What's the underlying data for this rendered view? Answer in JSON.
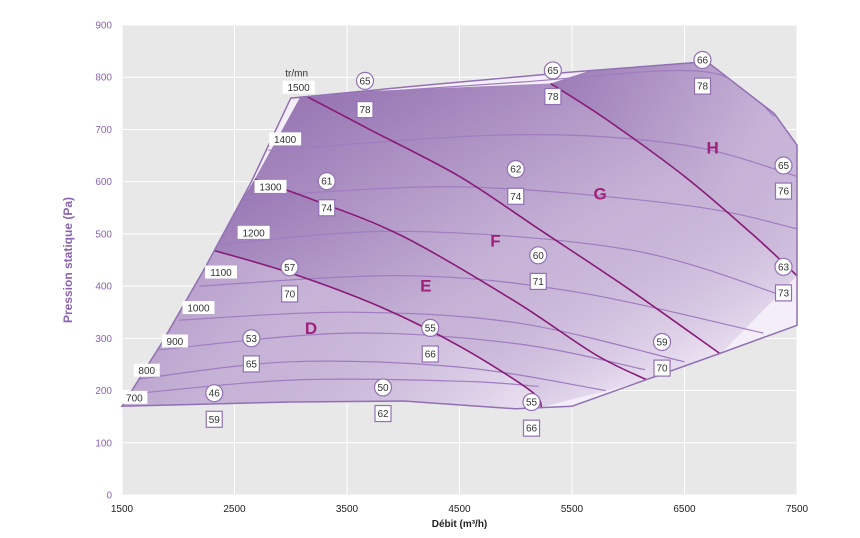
{
  "chart_data": {
    "type": "area",
    "title": "",
    "xlabel": "Débit (m³/h)",
    "ylabel": "Pression statique (Pa)",
    "xlim": [
      1500,
      7500
    ],
    "ylim": [
      0,
      900
    ],
    "x_ticks": [
      "1500",
      "2500",
      "3500",
      "4500",
      "5500",
      "6500",
      "7500"
    ],
    "y_ticks": [
      "0",
      "100",
      "200",
      "300",
      "400",
      "500",
      "600",
      "700",
      "800",
      "900"
    ],
    "speed_unit": "tr/mn",
    "outline": [
      {
        "x": 1500,
        "y": 170
      },
      {
        "x": 1850,
        "y": 290
      },
      {
        "x": 2250,
        "y": 440
      },
      {
        "x": 2650,
        "y": 600
      },
      {
        "x": 3000,
        "y": 760
      },
      {
        "x": 4200,
        "y": 785
      },
      {
        "x": 5500,
        "y": 810
      },
      {
        "x": 6700,
        "y": 830
      },
      {
        "x": 7300,
        "y": 730
      },
      {
        "x": 7500,
        "y": 670
      },
      {
        "x": 7500,
        "y": 325
      },
      {
        "x": 6800,
        "y": 270
      },
      {
        "x": 5500,
        "y": 170
      },
      {
        "x": 5000,
        "y": 165
      },
      {
        "x": 4000,
        "y": 180
      },
      {
        "x": 3000,
        "y": 178
      },
      {
        "x": 1500,
        "y": 170
      }
    ],
    "zones": [
      {
        "name": "D",
        "label_at": {
          "x": 3180,
          "y": 308
        },
        "boundary": [
          {
            "x": 2290,
            "y": 470
          },
          {
            "x": 3000,
            "y": 425
          },
          {
            "x": 3800,
            "y": 360
          },
          {
            "x": 4500,
            "y": 285
          },
          {
            "x": 5130,
            "y": 200
          },
          {
            "x": 5230,
            "y": 168
          }
        ]
      },
      {
        "name": "E",
        "label_at": {
          "x": 4200,
          "y": 390
        },
        "boundary": [
          {
            "x": 2680,
            "y": 605
          },
          {
            "x": 3200,
            "y": 565
          },
          {
            "x": 4000,
            "y": 495
          },
          {
            "x": 5000,
            "y": 370
          },
          {
            "x": 5700,
            "y": 270
          },
          {
            "x": 6170,
            "y": 220
          }
        ]
      },
      {
        "name": "F",
        "label_at": {
          "x": 4820,
          "y": 476
        },
        "boundary": [
          {
            "x": 3100,
            "y": 768
          },
          {
            "x": 3700,
            "y": 700
          },
          {
            "x": 4500,
            "y": 610
          },
          {
            "x": 5200,
            "y": 510
          },
          {
            "x": 6000,
            "y": 395
          },
          {
            "x": 6820,
            "y": 270
          }
        ]
      },
      {
        "name": "G",
        "label_at": {
          "x": 5750,
          "y": 566
        },
        "boundary": [
          {
            "x": 5310,
            "y": 788
          },
          {
            "x": 5800,
            "y": 720
          },
          {
            "x": 6500,
            "y": 610
          },
          {
            "x": 7100,
            "y": 500
          },
          {
            "x": 7500,
            "y": 420
          }
        ]
      },
      {
        "name": "H",
        "label_at": {
          "x": 6750,
          "y": 654
        },
        "boundary": []
      }
    ],
    "speed_curves": [
      {
        "rpm": "700",
        "label_at": {
          "x": 1610,
          "y": 186
        },
        "points": [
          {
            "x": 1520,
            "y": 192
          },
          {
            "x": 3000,
            "y": 220
          },
          {
            "x": 4500,
            "y": 218
          },
          {
            "x": 5200,
            "y": 208
          }
        ]
      },
      {
        "rpm": "800",
        "label_at": {
          "x": 1720,
          "y": 238
        },
        "points": [
          {
            "x": 1640,
            "y": 222
          },
          {
            "x": 3000,
            "y": 255
          },
          {
            "x": 4500,
            "y": 245
          },
          {
            "x": 5800,
            "y": 200
          }
        ]
      },
      {
        "rpm": "900",
        "label_at": {
          "x": 1970,
          "y": 294
        },
        "points": [
          {
            "x": 1830,
            "y": 278
          },
          {
            "x": 3500,
            "y": 310
          },
          {
            "x": 5000,
            "y": 290
          },
          {
            "x": 6150,
            "y": 240
          }
        ]
      },
      {
        "rpm": "1000",
        "label_at": {
          "x": 2180,
          "y": 358
        },
        "points": [
          {
            "x": 2010,
            "y": 335
          },
          {
            "x": 3500,
            "y": 350
          },
          {
            "x": 5000,
            "y": 330
          },
          {
            "x": 6500,
            "y": 255
          }
        ]
      },
      {
        "rpm": "1100",
        "label_at": {
          "x": 2380,
          "y": 426
        },
        "points": [
          {
            "x": 2190,
            "y": 400
          },
          {
            "x": 4000,
            "y": 420
          },
          {
            "x": 5500,
            "y": 390
          },
          {
            "x": 7200,
            "y": 310
          }
        ]
      },
      {
        "rpm": "1200",
        "label_at": {
          "x": 2670,
          "y": 502
        },
        "points": [
          {
            "x": 2370,
            "y": 480
          },
          {
            "x": 4000,
            "y": 505
          },
          {
            "x": 6000,
            "y": 470
          },
          {
            "x": 7400,
            "y": 380
          }
        ]
      },
      {
        "rpm": "1300",
        "label_at": {
          "x": 2820,
          "y": 590
        },
        "points": [
          {
            "x": 2570,
            "y": 570
          },
          {
            "x": 4500,
            "y": 590
          },
          {
            "x": 6500,
            "y": 555
          },
          {
            "x": 7500,
            "y": 510
          }
        ]
      },
      {
        "rpm": "1400",
        "label_at": {
          "x": 2950,
          "y": 681
        },
        "points": [
          {
            "x": 2800,
            "y": 660
          },
          {
            "x": 5000,
            "y": 690
          },
          {
            "x": 6500,
            "y": 670
          },
          {
            "x": 7500,
            "y": 610
          }
        ]
      },
      {
        "rpm": "1500",
        "label_at": {
          "x": 3070,
          "y": 780
        },
        "points": [
          {
            "x": 3000,
            "y": 760
          },
          {
            "x": 5000,
            "y": 790
          },
          {
            "x": 6700,
            "y": 810
          },
          {
            "x": 7300,
            "y": 725
          }
        ]
      }
    ],
    "circle_labels": [
      {
        "text": "65",
        "x": 3660,
        "y": 793
      },
      {
        "text": "65",
        "x": 5330,
        "y": 813
      },
      {
        "text": "66",
        "x": 6660,
        "y": 833
      },
      {
        "text": "61",
        "x": 3320,
        "y": 601
      },
      {
        "text": "62",
        "x": 5000,
        "y": 624
      },
      {
        "text": "65",
        "x": 7380,
        "y": 631
      },
      {
        "text": "57",
        "x": 2990,
        "y": 436
      },
      {
        "text": "60",
        "x": 5200,
        "y": 459
      },
      {
        "text": "63",
        "x": 7380,
        "y": 437
      },
      {
        "text": "53",
        "x": 2650,
        "y": 300
      },
      {
        "text": "55",
        "x": 4240,
        "y": 320
      },
      {
        "text": "59",
        "x": 6300,
        "y": 293
      },
      {
        "text": "46",
        "x": 2320,
        "y": 195
      },
      {
        "text": "50",
        "x": 3820,
        "y": 206
      },
      {
        "text": "55",
        "x": 5140,
        "y": 178
      }
    ],
    "box_labels": [
      {
        "text": "78",
        "x": 3660,
        "y": 738
      },
      {
        "text": "78",
        "x": 5330,
        "y": 763
      },
      {
        "text": "78",
        "x": 6660,
        "y": 783
      },
      {
        "text": "74",
        "x": 3320,
        "y": 550
      },
      {
        "text": "74",
        "x": 5000,
        "y": 572
      },
      {
        "text": "76",
        "x": 7380,
        "y": 582
      },
      {
        "text": "70",
        "x": 2990,
        "y": 385
      },
      {
        "text": "71",
        "x": 5200,
        "y": 409
      },
      {
        "text": "73",
        "x": 7380,
        "y": 387
      },
      {
        "text": "65",
        "x": 2650,
        "y": 251
      },
      {
        "text": "66",
        "x": 4240,
        "y": 270
      },
      {
        "text": "70",
        "x": 6300,
        "y": 243
      },
      {
        "text": "59",
        "x": 2320,
        "y": 145
      },
      {
        "text": "62",
        "x": 3820,
        "y": 156
      },
      {
        "text": "66",
        "x": 5140,
        "y": 128
      }
    ],
    "colors": {
      "plot_bg": "#e8e8e8",
      "grid": "#ffffff",
      "fill_light": "#f4eef9",
      "fill_dark": "#8e6aac",
      "line": "#a07cc0",
      "zone_line": "#8a1a78",
      "outline": "#9270b4",
      "accent": "#8a63b0",
      "zone_text": "#a0207a"
    }
  }
}
